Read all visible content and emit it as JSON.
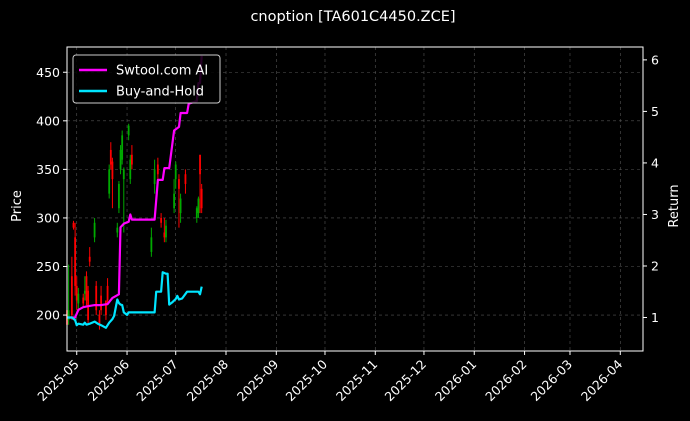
{
  "chart_data": {
    "type": "line",
    "title": "cnoption [TA601C4450.ZCE]",
    "ylabel_left": "Price",
    "ylabel_right": "Return",
    "xlim": [
      "2025-04-25",
      "2026-04-15"
    ],
    "ylim_left": [
      163,
      476
    ],
    "ylim_right": [
      0.35,
      6.25
    ],
    "grid": true,
    "legend_placement": "top-left",
    "x_ticks": [
      "2025-05",
      "2025-06",
      "2025-07",
      "2025-08",
      "2025-09",
      "2025-10",
      "2025-11",
      "2025-12",
      "2026-01",
      "2026-02",
      "2026-03",
      "2026-04"
    ],
    "x_tick_dates": [
      "2025-05-01",
      "2025-06-01",
      "2025-07-01",
      "2025-08-01",
      "2025-09-01",
      "2025-10-01",
      "2025-11-01",
      "2025-12-01",
      "2026-01-01",
      "2026-02-01",
      "2026-03-01",
      "2026-04-01"
    ],
    "y_ticks_left": [
      200,
      250,
      300,
      350,
      400,
      450
    ],
    "y_ticks_right": [
      1,
      2,
      3,
      4,
      5,
      6
    ],
    "colors": {
      "background": "#000000",
      "strategy": "#ff00ff",
      "benchmark": "#00e5ff",
      "up": "#00aa00",
      "down": "#ff0000",
      "grid": "#555555"
    },
    "series": [
      {
        "name": "Swtool.com AI",
        "axis": "right",
        "color": "#ff00ff",
        "points": [
          [
            "2025-04-25",
            1.0
          ],
          [
            "2025-04-28",
            1.0
          ],
          [
            "2025-04-30",
            1.0
          ],
          [
            "2025-05-02",
            1.15
          ],
          [
            "2025-05-05",
            1.2
          ],
          [
            "2025-05-08",
            1.22
          ],
          [
            "2025-05-12",
            1.24
          ],
          [
            "2025-05-16",
            1.24
          ],
          [
            "2025-05-20",
            1.26
          ],
          [
            "2025-05-23",
            1.38
          ],
          [
            "2025-05-27",
            1.45
          ],
          [
            "2025-05-28",
            2.75
          ],
          [
            "2025-05-30",
            2.82
          ],
          [
            "2025-06-02",
            2.86
          ],
          [
            "2025-06-03",
            3.0
          ],
          [
            "2025-06-04",
            2.9
          ],
          [
            "2025-06-10",
            2.9
          ],
          [
            "2025-06-18",
            2.9
          ],
          [
            "2025-06-20",
            3.67
          ],
          [
            "2025-06-23",
            3.67
          ],
          [
            "2025-06-24",
            3.9
          ],
          [
            "2025-06-27",
            3.9
          ],
          [
            "2025-06-30",
            4.63
          ],
          [
            "2025-07-03",
            4.7
          ],
          [
            "2025-07-04",
            4.97
          ],
          [
            "2025-07-08",
            4.97
          ],
          [
            "2025-07-09",
            5.15
          ],
          [
            "2025-07-14",
            5.2
          ],
          [
            "2025-07-15",
            5.55
          ],
          [
            "2025-07-16",
            5.55
          ],
          [
            "2025-07-17",
            6.08
          ]
        ]
      },
      {
        "name": "Buy-and-Hold",
        "axis": "right",
        "color": "#00e5ff",
        "points": [
          [
            "2025-04-25",
            1.0
          ],
          [
            "2025-04-28",
            1.0
          ],
          [
            "2025-04-30",
            0.95
          ],
          [
            "2025-05-01",
            0.85
          ],
          [
            "2025-05-02",
            0.88
          ],
          [
            "2025-05-05",
            0.86
          ],
          [
            "2025-05-06",
            0.9
          ],
          [
            "2025-05-07",
            0.86
          ],
          [
            "2025-05-09",
            0.88
          ],
          [
            "2025-05-12",
            0.92
          ],
          [
            "2025-05-14",
            0.88
          ],
          [
            "2025-05-16",
            0.85
          ],
          [
            "2025-05-19",
            0.8
          ],
          [
            "2025-05-21",
            0.9
          ],
          [
            "2025-05-23",
            0.97
          ],
          [
            "2025-05-24",
            1.03
          ],
          [
            "2025-05-26",
            1.35
          ],
          [
            "2025-05-27",
            1.28
          ],
          [
            "2025-05-28",
            1.25
          ],
          [
            "2025-05-29",
            1.24
          ],
          [
            "2025-05-30",
            1.1
          ],
          [
            "2025-06-01",
            1.05
          ],
          [
            "2025-06-02",
            1.1
          ],
          [
            "2025-06-05",
            1.1
          ],
          [
            "2025-06-10",
            1.1
          ],
          [
            "2025-06-18",
            1.1
          ],
          [
            "2025-06-19",
            1.5
          ],
          [
            "2025-06-22",
            1.5
          ],
          [
            "2025-06-23",
            1.88
          ],
          [
            "2025-06-25",
            1.85
          ],
          [
            "2025-06-26",
            1.85
          ],
          [
            "2025-06-27",
            1.25
          ],
          [
            "2025-06-29",
            1.3
          ],
          [
            "2025-07-01",
            1.36
          ],
          [
            "2025-07-02",
            1.42
          ],
          [
            "2025-07-03",
            1.35
          ],
          [
            "2025-07-05",
            1.37
          ],
          [
            "2025-07-08",
            1.5
          ],
          [
            "2025-07-11",
            1.5
          ],
          [
            "2025-07-15",
            1.5
          ],
          [
            "2025-07-16",
            1.45
          ],
          [
            "2025-07-17",
            1.6
          ]
        ]
      }
    ],
    "candles": [
      [
        "2025-04-25",
        205,
        190,
        215,
        185
      ],
      [
        "2025-04-26",
        195,
        205,
        252,
        190
      ],
      [
        "2025-04-28",
        240,
        200,
        260,
        195
      ],
      [
        "2025-04-29",
        295,
        290,
        297,
        288
      ],
      [
        "2025-04-30",
        280,
        230,
        295,
        220
      ],
      [
        "2025-05-01",
        230,
        215,
        240,
        205
      ],
      [
        "2025-05-02",
        212,
        222,
        228,
        205
      ],
      [
        "2025-05-05",
        218,
        212,
        222,
        208
      ],
      [
        "2025-05-06",
        222,
        225,
        240,
        215
      ],
      [
        "2025-05-07",
        240,
        215,
        245,
        210
      ],
      [
        "2025-05-08",
        225,
        195,
        230,
        190
      ],
      [
        "2025-05-09",
        260,
        255,
        270,
        250
      ],
      [
        "2025-05-12",
        280,
        295,
        300,
        275
      ],
      [
        "2025-05-13",
        230,
        205,
        235,
        200
      ],
      [
        "2025-05-15",
        200,
        190,
        205,
        185
      ],
      [
        "2025-05-16",
        220,
        205,
        230,
        200
      ],
      [
        "2025-05-19",
        215,
        200,
        215,
        195
      ],
      [
        "2025-05-20",
        230,
        215,
        238,
        210
      ],
      [
        "2025-05-21",
        325,
        350,
        355,
        320
      ],
      [
        "2025-05-22",
        370,
        355,
        378,
        350
      ],
      [
        "2025-05-23",
        358,
        340,
        362,
        310
      ],
      [
        "2025-05-26",
        285,
        290,
        295,
        280
      ],
      [
        "2025-05-27",
        310,
        335,
        338,
        305
      ],
      [
        "2025-05-28",
        350,
        370,
        375,
        345
      ],
      [
        "2025-05-29",
        360,
        385,
        390,
        355
      ],
      [
        "2025-05-30",
        340,
        350,
        352,
        285
      ],
      [
        "2025-06-02",
        385,
        395,
        397,
        380
      ],
      [
        "2025-06-03",
        340,
        360,
        365,
        335
      ],
      [
        "2025-06-04",
        365,
        355,
        375,
        350
      ],
      [
        "2025-06-16",
        265,
        280,
        290,
        260
      ],
      [
        "2025-06-18",
        335,
        350,
        360,
        325
      ],
      [
        "2025-06-20",
        355,
        345,
        362,
        340
      ],
      [
        "2025-06-22",
        300,
        295,
        305,
        290
      ],
      [
        "2025-06-24",
        285,
        280,
        300,
        275
      ],
      [
        "2025-06-25",
        280,
        292,
        298,
        275
      ],
      [
        "2025-06-30",
        310,
        325,
        340,
        305
      ],
      [
        "2025-07-01",
        340,
        355,
        358,
        330
      ],
      [
        "2025-07-03",
        340,
        330,
        345,
        290
      ],
      [
        "2025-07-04",
        305,
        320,
        325,
        295
      ],
      [
        "2025-07-07",
        345,
        335,
        350,
        325
      ],
      [
        "2025-07-14",
        300,
        310,
        312,
        295
      ],
      [
        "2025-07-15",
        305,
        320,
        322,
        300
      ],
      [
        "2025-07-16",
        365,
        345,
        365,
        305
      ],
      [
        "2025-07-17",
        330,
        310,
        335,
        305
      ]
    ]
  }
}
